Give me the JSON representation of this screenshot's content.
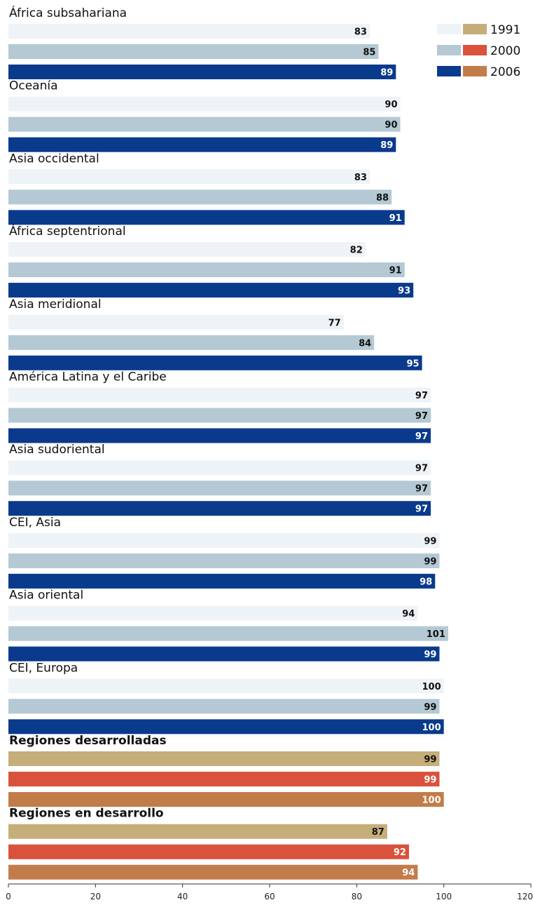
{
  "chart_data": {
    "type": "bar",
    "orientation": "horizontal",
    "xlim": [
      0,
      120
    ],
    "x_ticks": [
      "0",
      "20",
      "40",
      "60",
      "80",
      "100",
      "120"
    ],
    "grid": false,
    "legend_position": "top-right",
    "legend": [
      {
        "label": "1991",
        "colors": [
          "#eef3f8",
          "#c5ae7a"
        ]
      },
      {
        "label": "2000",
        "colors": [
          "#b4c9d4",
          "#d9523c"
        ]
      },
      {
        "label": "2006",
        "colors": [
          "#0a3a8c",
          "#c27c4a"
        ]
      }
    ],
    "series_names": [
      "1991",
      "2000",
      "2006"
    ],
    "palettes": {
      "regional": [
        "#eef3f8",
        "#b4c9d4",
        "#0a3a8c"
      ],
      "aggregate": [
        "#c5ae7a",
        "#d9523c",
        "#c27c4a"
      ]
    },
    "value_label_colors": {
      "regional": [
        "#111111",
        "#111111",
        "#ffffff"
      ],
      "aggregate": [
        "#111111",
        "#ffffff",
        "#ffffff"
      ]
    },
    "groups": [
      {
        "label": "África subsahariana",
        "values": [
          83,
          85,
          89
        ],
        "bold": false,
        "palette": "regional"
      },
      {
        "label": "Oceanía",
        "values": [
          90,
          90,
          89
        ],
        "bold": false,
        "palette": "regional"
      },
      {
        "label": "Asia occidental",
        "values": [
          83,
          88,
          91
        ],
        "bold": false,
        "palette": "regional"
      },
      {
        "label": "África septentrional",
        "values": [
          82,
          91,
          93
        ],
        "bold": false,
        "palette": "regional"
      },
      {
        "label": "Asia meridional",
        "values": [
          77,
          84,
          95
        ],
        "bold": false,
        "palette": "regional"
      },
      {
        "label": "América Latina y el Caribe",
        "values": [
          97,
          97,
          97
        ],
        "bold": false,
        "palette": "regional"
      },
      {
        "label": "Asia sudoriental",
        "values": [
          97,
          97,
          97
        ],
        "bold": false,
        "palette": "regional"
      },
      {
        "label": "CEI, Asia",
        "values": [
          99,
          99,
          98
        ],
        "bold": false,
        "palette": "regional"
      },
      {
        "label": "Asia oriental",
        "values": [
          94,
          101,
          99
        ],
        "bold": false,
        "palette": "regional"
      },
      {
        "label": "CEI, Europa",
        "values": [
          100,
          99,
          100
        ],
        "bold": false,
        "palette": "regional"
      },
      {
        "label": "Regiones desarrolladas",
        "values": [
          99,
          99,
          100
        ],
        "bold": true,
        "palette": "aggregate"
      },
      {
        "label": "Regiones en desarrollo",
        "values": [
          87,
          92,
          94
        ],
        "bold": true,
        "palette": "aggregate"
      }
    ]
  }
}
